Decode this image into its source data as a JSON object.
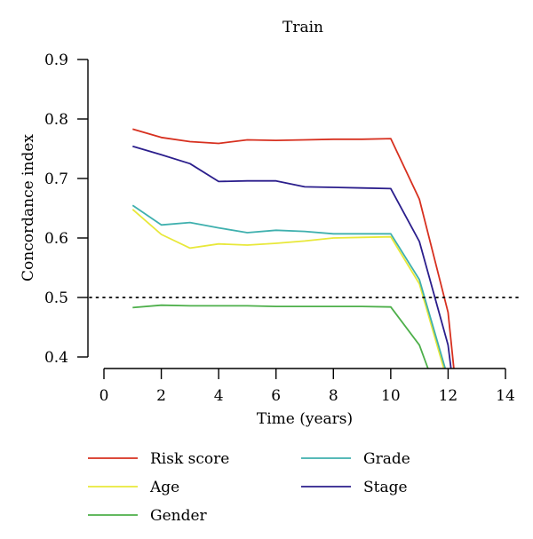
{
  "chart_data": {
    "type": "line",
    "title": "Train",
    "xlabel": "Time (years)",
    "ylabel": "Concordance index",
    "xlim": [
      0,
      14
    ],
    "ylim": [
      0.38,
      0.9
    ],
    "x_ticks": [
      "0",
      "2",
      "4",
      "6",
      "8",
      "10",
      "12",
      "14"
    ],
    "y_ticks": [
      "0.4",
      "0.5",
      "0.6",
      "0.7",
      "0.8",
      "0.9"
    ],
    "reference_line": {
      "y": 0.5,
      "style": "dotted",
      "color": "#000000"
    },
    "grid": false,
    "legend_position": "bottom",
    "series": [
      {
        "name": "Risk score",
        "color": "#d7301f",
        "x": [
          1,
          2,
          3,
          4,
          5,
          6,
          7,
          8,
          9,
          10,
          11,
          12,
          12.2
        ],
        "y": [
          0.783,
          0.769,
          0.762,
          0.759,
          0.765,
          0.764,
          0.765,
          0.766,
          0.766,
          0.767,
          0.665,
          0.475,
          0.38
        ]
      },
      {
        "name": "Age",
        "color": "#e8e83a",
        "x": [
          1,
          2,
          3,
          4,
          5,
          6,
          7,
          8,
          9,
          10,
          11,
          11.85
        ],
        "y": [
          0.648,
          0.606,
          0.583,
          0.59,
          0.588,
          0.591,
          0.595,
          0.6,
          0.601,
          0.602,
          0.523,
          0.38
        ]
      },
      {
        "name": "Gender",
        "color": "#4daf4a",
        "x": [
          1,
          2,
          3,
          4,
          5,
          6,
          7,
          8,
          9,
          10,
          11,
          11.3
        ],
        "y": [
          0.483,
          0.487,
          0.486,
          0.486,
          0.486,
          0.485,
          0.485,
          0.485,
          0.485,
          0.484,
          0.42,
          0.38
        ]
      },
      {
        "name": "Grade",
        "color": "#3fb0ae",
        "x": [
          1,
          2,
          3,
          4,
          5,
          6,
          7,
          8,
          9,
          10,
          11,
          11.9
        ],
        "y": [
          0.655,
          0.622,
          0.626,
          0.617,
          0.609,
          0.613,
          0.611,
          0.607,
          0.607,
          0.607,
          0.53,
          0.38
        ]
      },
      {
        "name": "Stage",
        "color": "#2b1e8c",
        "x": [
          1,
          2,
          3,
          4,
          5,
          6,
          7,
          8,
          9,
          10,
          11,
          12,
          12.1
        ],
        "y": [
          0.754,
          0.74,
          0.725,
          0.695,
          0.696,
          0.696,
          0.686,
          0.685,
          0.684,
          0.683,
          0.594,
          0.42,
          0.38
        ]
      }
    ]
  }
}
